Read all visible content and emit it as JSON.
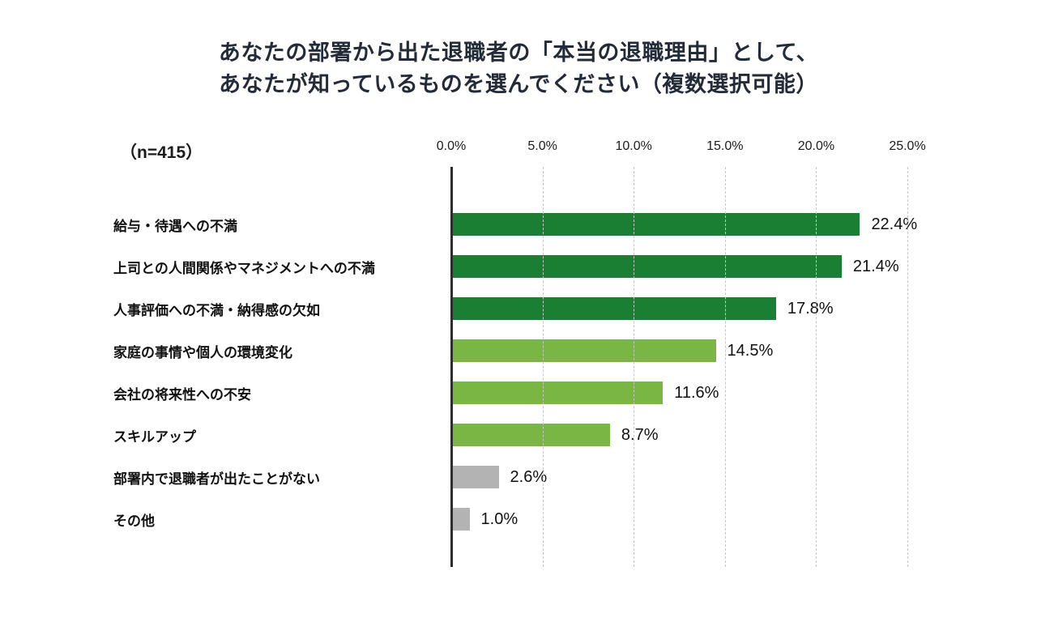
{
  "title": {
    "line1": "あなたの部署から出た退職者の「本当の退職理由」として、",
    "line2": "あなたが知っているものを選んでください（複数選択可能）"
  },
  "sample_size_label": "（n=415）",
  "colors": {
    "dark_green": "#1a7e33",
    "light_green": "#7ab644",
    "gray": "#b3b3b3",
    "title_text": "#232b38",
    "axis": "#2d2d2d",
    "gridline": "#c6c6c6"
  },
  "chart_data": {
    "type": "bar",
    "orientation": "horizontal",
    "title": "あなたの部署から出た退職者の「本当の退職理由」として、あなたが知っているものを選んでください（複数選択可能）",
    "sample_size": 415,
    "categories": [
      "給与・待遇への不満",
      "上司との人間関係やマネジメントへの不満",
      "人事評価への不満・納得感の欠如",
      "家庭の事情や個人の環境変化",
      "会社の将来性への不安",
      "スキルアップ",
      "部署内で退職者が出たことがない",
      "その他"
    ],
    "values": [
      22.4,
      21.4,
      17.8,
      14.5,
      11.6,
      8.7,
      2.6,
      1.0
    ],
    "value_labels": [
      "22.4%",
      "21.4%",
      "17.8%",
      "14.5%",
      "11.6%",
      "8.7%",
      "2.6%",
      "1.0%"
    ],
    "bar_colors": [
      "#1a7e33",
      "#1a7e33",
      "#1a7e33",
      "#7ab644",
      "#7ab644",
      "#7ab644",
      "#b3b3b3",
      "#b3b3b3"
    ],
    "x_ticks": [
      "0.0%",
      "5.0%",
      "10.0%",
      "15.0%",
      "20.0%",
      "25.0%"
    ],
    "xlim": [
      0,
      25
    ],
    "grid": "vertical-dashed",
    "legend": "none"
  }
}
